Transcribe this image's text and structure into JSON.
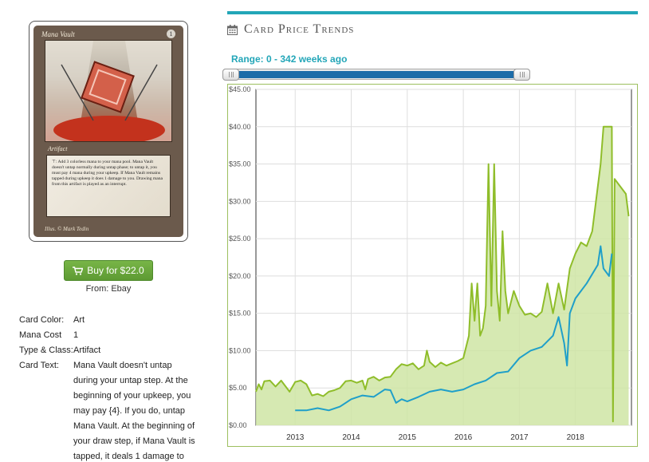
{
  "card": {
    "title": "Mana Vault",
    "cost_symbol": "1",
    "type_line": "Artifact",
    "rules_text": "⊤: Add 3 colorless mana to your mana pool. Mana Vault doesn't untap normally during untap phase; to untap it, you must pay 4 mana during your upkeep. If Mana Vault remains tapped during upkeep it does 1 damage to you. Drawing mana from this artifact is played as an interrupt.",
    "illustrator": "Illus. © Mark Tedin",
    "alt": "Mana Vault card"
  },
  "buy": {
    "label": "Buy for $22.0",
    "icon": "shopping-cart-icon",
    "from": "From: Ebay",
    "color": "#6aa83d"
  },
  "details": [
    {
      "label": "Card Color:",
      "value": "Art"
    },
    {
      "label": "Mana Cost",
      "value": "1"
    },
    {
      "label": "Type & Class:",
      "value": "Artifact"
    },
    {
      "label": "Card Text:",
      "value": "Mana Vault doesn't untap during your untap step. At the beginning of your upkeep, you may pay {4}. If you do, untap Mana Vault. At the beginning of your draw step, if Mana Vault is tapped, it deals 1 damage to"
    }
  ],
  "section": {
    "title": "Card Price Trends",
    "icon": "calendar-icon",
    "accent": "#23a6b8"
  },
  "range": {
    "label": "Range: 0 - 342 weeks ago",
    "min_weeks": 0,
    "max_weeks": 342
  },
  "chart_data": {
    "type": "area",
    "title": "",
    "xlabel": "",
    "ylabel": "",
    "ylim": [
      0,
      45
    ],
    "y_ticks": [
      "$0.00",
      "$5.00",
      "$10.00",
      "$15.00",
      "$20.00",
      "$25.00",
      "$30.00",
      "$35.00",
      "$40.00",
      "$45.00"
    ],
    "x_ticks": [
      {
        "label": "2013",
        "x": 2013.0
      },
      {
        "label": "2014",
        "x": 2014.0
      },
      {
        "label": "2015",
        "x": 2015.0
      },
      {
        "label": "2016",
        "x": 2016.0
      },
      {
        "label": "2017",
        "x": 2017.0
      },
      {
        "label": "2018",
        "x": 2018.0
      }
    ],
    "xlim": [
      2012.3,
      2019.0
    ],
    "grid": true,
    "series": [
      {
        "color": "#8fbd2a",
        "fill": "#cfe5a4",
        "points": [
          [
            2012.3,
            4.5
          ],
          [
            2012.35,
            5.5
          ],
          [
            2012.4,
            4.8
          ],
          [
            2012.45,
            5.9
          ],
          [
            2012.55,
            6.0
          ],
          [
            2012.65,
            5.2
          ],
          [
            2012.75,
            6.0
          ],
          [
            2012.9,
            4.5
          ],
          [
            2013.0,
            5.8
          ],
          [
            2013.1,
            6.0
          ],
          [
            2013.2,
            5.5
          ],
          [
            2013.3,
            4.0
          ],
          [
            2013.4,
            4.2
          ],
          [
            2013.5,
            3.9
          ],
          [
            2013.6,
            4.5
          ],
          [
            2013.7,
            4.7
          ],
          [
            2013.8,
            5.0
          ],
          [
            2013.9,
            5.9
          ],
          [
            2014.0,
            6.0
          ],
          [
            2014.1,
            5.7
          ],
          [
            2014.2,
            6.0
          ],
          [
            2014.25,
            4.8
          ],
          [
            2014.3,
            6.2
          ],
          [
            2014.4,
            6.5
          ],
          [
            2014.5,
            6.0
          ],
          [
            2014.6,
            6.4
          ],
          [
            2014.7,
            6.5
          ],
          [
            2014.8,
            7.5
          ],
          [
            2014.9,
            8.2
          ],
          [
            2015.0,
            8.0
          ],
          [
            2015.1,
            8.3
          ],
          [
            2015.2,
            7.5
          ],
          [
            2015.3,
            8.0
          ],
          [
            2015.35,
            10.0
          ],
          [
            2015.4,
            8.5
          ],
          [
            2015.5,
            7.8
          ],
          [
            2015.6,
            8.4
          ],
          [
            2015.7,
            8.0
          ],
          [
            2015.8,
            8.3
          ],
          [
            2015.9,
            8.6
          ],
          [
            2016.0,
            9.0
          ],
          [
            2016.1,
            12.0
          ],
          [
            2016.15,
            19.0
          ],
          [
            2016.2,
            14.0
          ],
          [
            2016.25,
            19.0
          ],
          [
            2016.3,
            12.0
          ],
          [
            2016.35,
            13.0
          ],
          [
            2016.4,
            16.0
          ],
          [
            2016.45,
            35.0
          ],
          [
            2016.5,
            16.0
          ],
          [
            2016.55,
            35.0
          ],
          [
            2016.6,
            18.0
          ],
          [
            2016.65,
            14.0
          ],
          [
            2016.7,
            26.0
          ],
          [
            2016.75,
            18.0
          ],
          [
            2016.8,
            15.0
          ],
          [
            2016.9,
            18.0
          ],
          [
            2017.0,
            16.0
          ],
          [
            2017.1,
            14.8
          ],
          [
            2017.2,
            15.0
          ],
          [
            2017.3,
            14.5
          ],
          [
            2017.4,
            15.2
          ],
          [
            2017.5,
            19.0
          ],
          [
            2017.6,
            15.0
          ],
          [
            2017.7,
            19.0
          ],
          [
            2017.8,
            15.5
          ],
          [
            2017.9,
            21.0
          ],
          [
            2018.0,
            23.0
          ],
          [
            2018.1,
            24.5
          ],
          [
            2018.2,
            24.0
          ],
          [
            2018.3,
            26.0
          ],
          [
            2018.4,
            32.0
          ],
          [
            2018.45,
            35.0
          ],
          [
            2018.5,
            40.0
          ],
          [
            2018.6,
            40.0
          ],
          [
            2018.65,
            40.0
          ],
          [
            2018.67,
            0.5
          ],
          [
            2018.7,
            33.0
          ],
          [
            2018.8,
            32.0
          ],
          [
            2018.9,
            31.0
          ],
          [
            2018.95,
            28.0
          ]
        ]
      },
      {
        "color": "#1f9fc9",
        "points": [
          [
            2013.0,
            2.0
          ],
          [
            2013.2,
            2.0
          ],
          [
            2013.4,
            2.3
          ],
          [
            2013.6,
            2.0
          ],
          [
            2013.8,
            2.5
          ],
          [
            2013.9,
            3.0
          ],
          [
            2014.0,
            3.5
          ],
          [
            2014.2,
            4.0
          ],
          [
            2014.4,
            3.8
          ],
          [
            2014.6,
            4.8
          ],
          [
            2014.7,
            4.7
          ],
          [
            2014.8,
            3.0
          ],
          [
            2014.9,
            3.5
          ],
          [
            2015.0,
            3.2
          ],
          [
            2015.2,
            3.8
          ],
          [
            2015.4,
            4.5
          ],
          [
            2015.6,
            4.8
          ],
          [
            2015.8,
            4.5
          ],
          [
            2016.0,
            4.8
          ],
          [
            2016.2,
            5.5
          ],
          [
            2016.4,
            6.0
          ],
          [
            2016.6,
            7.0
          ],
          [
            2016.8,
            7.2
          ],
          [
            2017.0,
            9.0
          ],
          [
            2017.2,
            10.0
          ],
          [
            2017.4,
            10.5
          ],
          [
            2017.6,
            12.0
          ],
          [
            2017.7,
            14.5
          ],
          [
            2017.8,
            11.0
          ],
          [
            2017.85,
            8.0
          ],
          [
            2017.9,
            15.0
          ],
          [
            2018.0,
            17.0
          ],
          [
            2018.2,
            19.0
          ],
          [
            2018.4,
            21.5
          ],
          [
            2018.45,
            24.0
          ],
          [
            2018.5,
            21.0
          ],
          [
            2018.6,
            20.0
          ],
          [
            2018.65,
            23.0
          ]
        ]
      }
    ]
  }
}
